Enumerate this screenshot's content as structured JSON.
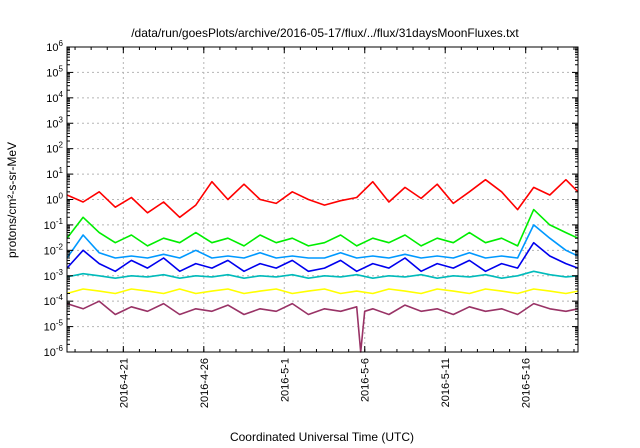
{
  "chart_data": {
    "type": "line",
    "title": "/data/run/goesPlots/archive/2016-05-17/flux/../flux/31daysMoonFluxes.txt",
    "xlabel": "Coordinated Universal Time (UTC)",
    "ylabel": "protons/cm²-s-sr-MeV",
    "yscale": "log",
    "ylim": [
      1e-06,
      1000000.0
    ],
    "xlim": [
      "2016-04-17T12:00",
      "2016-05-19T06:00"
    ],
    "x_ticks": [
      "2016-4-21",
      "2016-4-26",
      "2016-5-1",
      "2016-5-6",
      "2016-5-11",
      "2016-5-16"
    ],
    "x_tick_dates": [
      "2016-04-21",
      "2016-04-26",
      "2016-05-01",
      "2016-05-06",
      "2016-05-11",
      "2016-05-16"
    ],
    "y_ticks": [
      {
        "base": "10",
        "exp": "-6",
        "value": 1e-06
      },
      {
        "base": "10",
        "exp": "-5",
        "value": 1e-05
      },
      {
        "base": "10",
        "exp": "-4",
        "value": 0.0001
      },
      {
        "base": "10",
        "exp": "-3",
        "value": 0.001
      },
      {
        "base": "10",
        "exp": "-2",
        "value": 0.01
      },
      {
        "base": "10",
        "exp": "-1",
        "value": 0.1
      },
      {
        "base": "10",
        "exp": "0",
        "value": 1
      },
      {
        "base": "10",
        "exp": "1",
        "value": 10
      },
      {
        "base": "10",
        "exp": "2",
        "value": 100
      },
      {
        "base": "10",
        "exp": "3",
        "value": 1000
      },
      {
        "base": "10",
        "exp": "4",
        "value": 10000
      },
      {
        "base": "10",
        "exp": "5",
        "value": 100000
      },
      {
        "base": "10",
        "exp": "6",
        "value": 1000000
      }
    ],
    "grid": true,
    "legend": "none",
    "series": [
      {
        "color": "#ff0000",
        "x": [
          "2016-04-17T12:00",
          "2016-04-18T12:00",
          "2016-04-19T12:00",
          "2016-04-20T12:00",
          "2016-04-21T12:00",
          "2016-04-22T12:00",
          "2016-04-23T12:00",
          "2016-04-24T12:00",
          "2016-04-25T12:00",
          "2016-04-26T12:00",
          "2016-04-27T12:00",
          "2016-04-28T12:00",
          "2016-04-29T12:00",
          "2016-04-30T12:00",
          "2016-05-01T12:00",
          "2016-05-02T12:00",
          "2016-05-03T12:00",
          "2016-05-04T12:00",
          "2016-05-05T12:00",
          "2016-05-06T12:00",
          "2016-05-07T12:00",
          "2016-05-08T12:00",
          "2016-05-09T12:00",
          "2016-05-10T12:00",
          "2016-05-11T12:00",
          "2016-05-12T12:00",
          "2016-05-13T12:00",
          "2016-05-14T12:00",
          "2016-05-15T12:00",
          "2016-05-16T12:00",
          "2016-05-17T12:00",
          "2016-05-18T12:00",
          "2016-05-19T06:00"
        ],
        "y": [
          1.5,
          0.8,
          2,
          0.5,
          1.2,
          0.3,
          0.8,
          0.2,
          0.6,
          5,
          1,
          4,
          1,
          0.7,
          2,
          1,
          0.6,
          0.9,
          1.2,
          5,
          0.8,
          3,
          1.1,
          4,
          0.7,
          2,
          6,
          2,
          0.4,
          3,
          1.5,
          6,
          2
        ]
      },
      {
        "color": "#00ee00",
        "x": [
          "2016-04-17T12:00",
          "2016-04-18T12:00",
          "2016-04-19T12:00",
          "2016-04-20T12:00",
          "2016-04-21T12:00",
          "2016-04-22T12:00",
          "2016-04-23T12:00",
          "2016-04-24T12:00",
          "2016-04-25T12:00",
          "2016-04-26T12:00",
          "2016-04-27T12:00",
          "2016-04-28T12:00",
          "2016-04-29T12:00",
          "2016-04-30T12:00",
          "2016-05-01T12:00",
          "2016-05-02T12:00",
          "2016-05-03T12:00",
          "2016-05-04T12:00",
          "2016-05-05T12:00",
          "2016-05-06T12:00",
          "2016-05-07T12:00",
          "2016-05-08T12:00",
          "2016-05-09T12:00",
          "2016-05-10T12:00",
          "2016-05-11T12:00",
          "2016-05-12T12:00",
          "2016-05-13T12:00",
          "2016-05-14T12:00",
          "2016-05-15T12:00",
          "2016-05-16T12:00",
          "2016-05-17T12:00",
          "2016-05-18T12:00",
          "2016-05-19T06:00"
        ],
        "y": [
          0.03,
          0.2,
          0.05,
          0.02,
          0.04,
          0.015,
          0.03,
          0.02,
          0.05,
          0.02,
          0.03,
          0.015,
          0.04,
          0.02,
          0.03,
          0.015,
          0.02,
          0.04,
          0.015,
          0.03,
          0.02,
          0.04,
          0.015,
          0.03,
          0.02,
          0.05,
          0.02,
          0.03,
          0.015,
          0.4,
          0.1,
          0.05,
          0.03
        ]
      },
      {
        "color": "#0099ff",
        "x": [
          "2016-04-17T12:00",
          "2016-04-18T12:00",
          "2016-04-19T12:00",
          "2016-04-20T12:00",
          "2016-04-21T12:00",
          "2016-04-22T12:00",
          "2016-04-23T12:00",
          "2016-04-24T12:00",
          "2016-04-25T12:00",
          "2016-04-26T12:00",
          "2016-04-27T12:00",
          "2016-04-28T12:00",
          "2016-04-29T12:00",
          "2016-04-30T12:00",
          "2016-05-01T12:00",
          "2016-05-02T12:00",
          "2016-05-03T12:00",
          "2016-05-04T12:00",
          "2016-05-05T12:00",
          "2016-05-06T12:00",
          "2016-05-07T12:00",
          "2016-05-08T12:00",
          "2016-05-09T12:00",
          "2016-05-10T12:00",
          "2016-05-11T12:00",
          "2016-05-12T12:00",
          "2016-05-13T12:00",
          "2016-05-14T12:00",
          "2016-05-15T12:00",
          "2016-05-16T12:00",
          "2016-05-17T12:00",
          "2016-05-18T12:00",
          "2016-05-19T06:00"
        ],
        "y": [
          0.005,
          0.04,
          0.008,
          0.005,
          0.006,
          0.005,
          0.007,
          0.005,
          0.01,
          0.005,
          0.006,
          0.005,
          0.008,
          0.005,
          0.006,
          0.005,
          0.005,
          0.008,
          0.005,
          0.006,
          0.005,
          0.007,
          0.005,
          0.006,
          0.005,
          0.008,
          0.005,
          0.006,
          0.005,
          0.1,
          0.03,
          0.01,
          0.006
        ]
      },
      {
        "color": "#0000ee",
        "x": [
          "2016-04-17T12:00",
          "2016-04-18T12:00",
          "2016-04-19T12:00",
          "2016-04-20T12:00",
          "2016-04-21T12:00",
          "2016-04-22T12:00",
          "2016-04-23T12:00",
          "2016-04-24T12:00",
          "2016-04-25T12:00",
          "2016-04-26T12:00",
          "2016-04-27T12:00",
          "2016-04-28T12:00",
          "2016-04-29T12:00",
          "2016-04-30T12:00",
          "2016-05-01T12:00",
          "2016-05-02T12:00",
          "2016-05-03T12:00",
          "2016-05-04T12:00",
          "2016-05-05T12:00",
          "2016-05-06T12:00",
          "2016-05-07T12:00",
          "2016-05-08T12:00",
          "2016-05-09T12:00",
          "2016-05-10T12:00",
          "2016-05-11T12:00",
          "2016-05-12T12:00",
          "2016-05-13T12:00",
          "2016-05-14T12:00",
          "2016-05-15T12:00",
          "2016-05-16T12:00",
          "2016-05-17T12:00",
          "2016-05-18T12:00",
          "2016-05-19T06:00"
        ],
        "y": [
          0.002,
          0.01,
          0.003,
          0.0015,
          0.004,
          0.002,
          0.005,
          0.0015,
          0.003,
          0.002,
          0.004,
          0.0015,
          0.003,
          0.002,
          0.004,
          0.0015,
          0.002,
          0.004,
          0.0015,
          0.003,
          0.002,
          0.005,
          0.0015,
          0.003,
          0.002,
          0.004,
          0.0015,
          0.003,
          0.002,
          0.02,
          0.006,
          0.003,
          0.002
        ]
      },
      {
        "color": "#00bbbb",
        "x": [
          "2016-04-17T12:00",
          "2016-04-18T12:00",
          "2016-04-19T12:00",
          "2016-04-20T12:00",
          "2016-04-21T12:00",
          "2016-04-22T12:00",
          "2016-04-23T12:00",
          "2016-04-24T12:00",
          "2016-04-25T12:00",
          "2016-04-26T12:00",
          "2016-04-27T12:00",
          "2016-04-28T12:00",
          "2016-04-29T12:00",
          "2016-04-30T12:00",
          "2016-05-01T12:00",
          "2016-05-02T12:00",
          "2016-05-03T12:00",
          "2016-05-04T12:00",
          "2016-05-05T12:00",
          "2016-05-06T12:00",
          "2016-05-07T12:00",
          "2016-05-08T12:00",
          "2016-05-09T12:00",
          "2016-05-10T12:00",
          "2016-05-11T12:00",
          "2016-05-12T12:00",
          "2016-05-13T12:00",
          "2016-05-14T12:00",
          "2016-05-15T12:00",
          "2016-05-16T12:00",
          "2016-05-17T12:00",
          "2016-05-18T12:00",
          "2016-05-19T06:00"
        ],
        "y": [
          0.0009,
          0.0012,
          0.001,
          0.0008,
          0.001,
          0.0009,
          0.0011,
          0.0008,
          0.001,
          0.0009,
          0.0011,
          0.0008,
          0.001,
          0.0009,
          0.0011,
          0.0008,
          0.001,
          0.0009,
          0.0011,
          0.0008,
          0.001,
          0.0009,
          0.0011,
          0.0008,
          0.001,
          0.0009,
          0.0011,
          0.0008,
          0.001,
          0.0015,
          0.0011,
          0.0009,
          0.001
        ]
      },
      {
        "color": "#ffff00",
        "x": [
          "2016-04-17T12:00",
          "2016-04-18T12:00",
          "2016-04-19T12:00",
          "2016-04-20T12:00",
          "2016-04-21T12:00",
          "2016-04-22T12:00",
          "2016-04-23T12:00",
          "2016-04-24T12:00",
          "2016-04-25T12:00",
          "2016-04-26T12:00",
          "2016-04-27T12:00",
          "2016-04-28T12:00",
          "2016-04-29T12:00",
          "2016-04-30T12:00",
          "2016-05-01T12:00",
          "2016-05-02T12:00",
          "2016-05-03T12:00",
          "2016-05-04T12:00",
          "2016-05-05T12:00",
          "2016-05-06T12:00",
          "2016-05-07T12:00",
          "2016-05-08T12:00",
          "2016-05-09T12:00",
          "2016-05-10T12:00",
          "2016-05-11T12:00",
          "2016-05-12T12:00",
          "2016-05-13T12:00",
          "2016-05-14T12:00",
          "2016-05-15T12:00",
          "2016-05-16T12:00",
          "2016-05-17T12:00",
          "2016-05-18T12:00",
          "2016-05-19T06:00"
        ],
        "y": [
          0.0002,
          0.0003,
          0.00025,
          0.0002,
          0.0003,
          0.00025,
          0.0002,
          0.0003,
          0.0002,
          0.00025,
          0.0003,
          0.0002,
          0.00025,
          0.0003,
          0.0002,
          0.00025,
          0.0003,
          0.0002,
          0.00025,
          0.0002,
          0.0003,
          0.00025,
          0.0002,
          0.0003,
          0.00025,
          0.0002,
          0.0003,
          0.00025,
          0.0002,
          0.0003,
          0.00025,
          0.0002,
          0.00025
        ]
      },
      {
        "color": "#993366",
        "x": [
          "2016-04-17T12:00",
          "2016-04-18T12:00",
          "2016-04-19T12:00",
          "2016-04-20T12:00",
          "2016-04-21T12:00",
          "2016-04-22T12:00",
          "2016-04-23T12:00",
          "2016-04-24T12:00",
          "2016-04-25T12:00",
          "2016-04-26T12:00",
          "2016-04-27T12:00",
          "2016-04-28T12:00",
          "2016-04-29T12:00",
          "2016-04-30T12:00",
          "2016-05-01T12:00",
          "2016-05-02T12:00",
          "2016-05-03T12:00",
          "2016-05-04T12:00",
          "2016-05-05T12:00",
          "2016-05-05T18:00",
          "2016-05-06T00:00",
          "2016-05-06T12:00",
          "2016-05-07T12:00",
          "2016-05-08T12:00",
          "2016-05-09T12:00",
          "2016-05-10T12:00",
          "2016-05-11T12:00",
          "2016-05-12T12:00",
          "2016-05-13T12:00",
          "2016-05-14T12:00",
          "2016-05-15T12:00",
          "2016-05-16T12:00",
          "2016-05-17T12:00",
          "2016-05-18T12:00",
          "2016-05-19T06:00"
        ],
        "y": [
          8e-05,
          5e-05,
          0.0001,
          3e-05,
          6e-05,
          4e-05,
          8e-05,
          3e-05,
          5e-05,
          4e-05,
          7e-05,
          3e-05,
          5e-05,
          4e-05,
          8e-05,
          3e-05,
          5e-05,
          4e-05,
          6e-05,
          1e-06,
          4e-05,
          5e-05,
          3e-05,
          7e-05,
          4e-05,
          5e-05,
          3e-05,
          6e-05,
          4e-05,
          5e-05,
          3e-05,
          8e-05,
          5e-05,
          4e-05,
          5e-05
        ]
      }
    ]
  }
}
